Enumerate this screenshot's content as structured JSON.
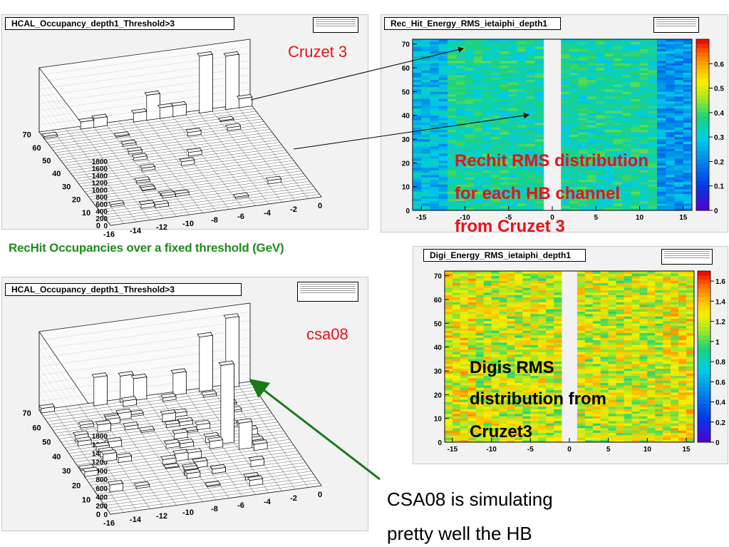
{
  "chart_data": [
    {
      "type": "bar3d",
      "title": "HCAL_Occupancy_depth1_Threshold>3",
      "x_ticks": [
        "-16",
        "-14",
        "-12",
        "-10",
        "-8",
        "-6",
        "-4",
        "-2",
        "0"
      ],
      "y_ticks": [
        "0",
        "10",
        "20",
        "30",
        "40",
        "50",
        "60",
        "70"
      ],
      "z_ticks": [
        "0",
        "200",
        "400",
        "600",
        "800",
        "1000",
        "1200",
        "1400",
        "1600",
        "1800"
      ],
      "xlim": [
        -16,
        0
      ],
      "ylim": [
        0,
        72
      ],
      "zlim": [
        0,
        1800
      ],
      "tall_bars": [
        {
          "x": -13,
          "y": 70,
          "value": 200
        },
        {
          "x": -12,
          "y": 70,
          "value": 250
        },
        {
          "x": -9,
          "y": 70,
          "value": 250
        },
        {
          "x": -8,
          "y": 70,
          "value": 700
        },
        {
          "x": -7,
          "y": 70,
          "value": 300
        },
        {
          "x": -6,
          "y": 70,
          "value": 300
        },
        {
          "x": -4,
          "y": 70,
          "value": 1600
        },
        {
          "x": -2,
          "y": 70,
          "value": 1500
        },
        {
          "x": -1,
          "y": 70,
          "value": 250
        }
      ]
    },
    {
      "type": "heatmap",
      "title": "Rec_Hit_Energy_RMS_ietaiphi_depth1",
      "x_ticks": [
        "-15",
        "-10",
        "-5",
        "0",
        "5",
        "10",
        "15"
      ],
      "y_ticks": [
        "0",
        "10",
        "20",
        "30",
        "40",
        "50",
        "60",
        "70"
      ],
      "xlim": [
        -16,
        16
      ],
      "ylim": [
        0,
        72
      ],
      "zlim": [
        0,
        0.7
      ],
      "colorbar_ticks": [
        "0",
        "0.1",
        "0.2",
        "0.3",
        "0.4",
        "0.5",
        "0.6"
      ],
      "typical_value": 0.35
    },
    {
      "type": "bar3d",
      "title": "HCAL_Occupancy_depth1_Threshold>3",
      "x_ticks": [
        "-16",
        "-14",
        "-12",
        "-10",
        "-8",
        "-6",
        "-4",
        "-2",
        "0"
      ],
      "y_ticks": [
        "0",
        "10",
        "20",
        "30",
        "40",
        "50",
        "60",
        "70"
      ],
      "z_ticks": [
        "0",
        "200",
        "400",
        "600",
        "800",
        "1000",
        "1200",
        "1400",
        "1600",
        "1800"
      ],
      "xlim": [
        -16,
        0
      ],
      "ylim": [
        0,
        72
      ],
      "zlim": [
        0,
        1800
      ],
      "tall_bars": [
        {
          "x": -16,
          "y": 70,
          "value": 100
        },
        {
          "x": -12,
          "y": 70,
          "value": 650
        },
        {
          "x": -10,
          "y": 70,
          "value": 600
        },
        {
          "x": -9,
          "y": 70,
          "value": 500
        },
        {
          "x": -6,
          "y": 70,
          "value": 500
        },
        {
          "x": -4,
          "y": 70,
          "value": 1250
        },
        {
          "x": -2,
          "y": 70,
          "value": 1600
        },
        {
          "x": -5,
          "y": 35,
          "value": 1800
        },
        {
          "x": -4,
          "y": 30,
          "value": 600
        }
      ]
    },
    {
      "type": "heatmap",
      "title": "Digi_Energy_RMS_ietaiphi_depth1",
      "x_ticks": [
        "-15",
        "-10",
        "-5",
        "0",
        "5",
        "10",
        "15"
      ],
      "y_ticks": [
        "0",
        "10",
        "20",
        "30",
        "40",
        "50",
        "60",
        "70"
      ],
      "xlim": [
        -16,
        16
      ],
      "ylim": [
        0,
        72
      ],
      "zlim": [
        0,
        1.7
      ],
      "colorbar_ticks": [
        "0",
        "0.2",
        "0.4",
        "0.6",
        "0.8",
        "1",
        "1.2",
        "1.4",
        "1.6"
      ],
      "typical_value": 1.2
    }
  ],
  "annotations": {
    "cruzet": "Cruzet 3",
    "rechit_line1": "Rechit RMS distribution",
    "rechit_line2": "for each HB channel",
    "rechit_line3": "from Cruzet 3",
    "occupancy_caption": "RecHit Occupancies over a fixed  threshold (GeV)",
    "csa08": "csa08",
    "digis_line1": "Digis RMS",
    "digis_line2": "distribution from",
    "digis_line3": "Cruzet3",
    "conclusion_line1": "CSA08 is simulating",
    "conclusion_line2": "pretty well the HB"
  },
  "colors": {
    "annotation_red": "#e8121a",
    "caption_green": "#1f8a1f",
    "arrow_green": "#1a7a1a",
    "text_black": "#000000"
  }
}
